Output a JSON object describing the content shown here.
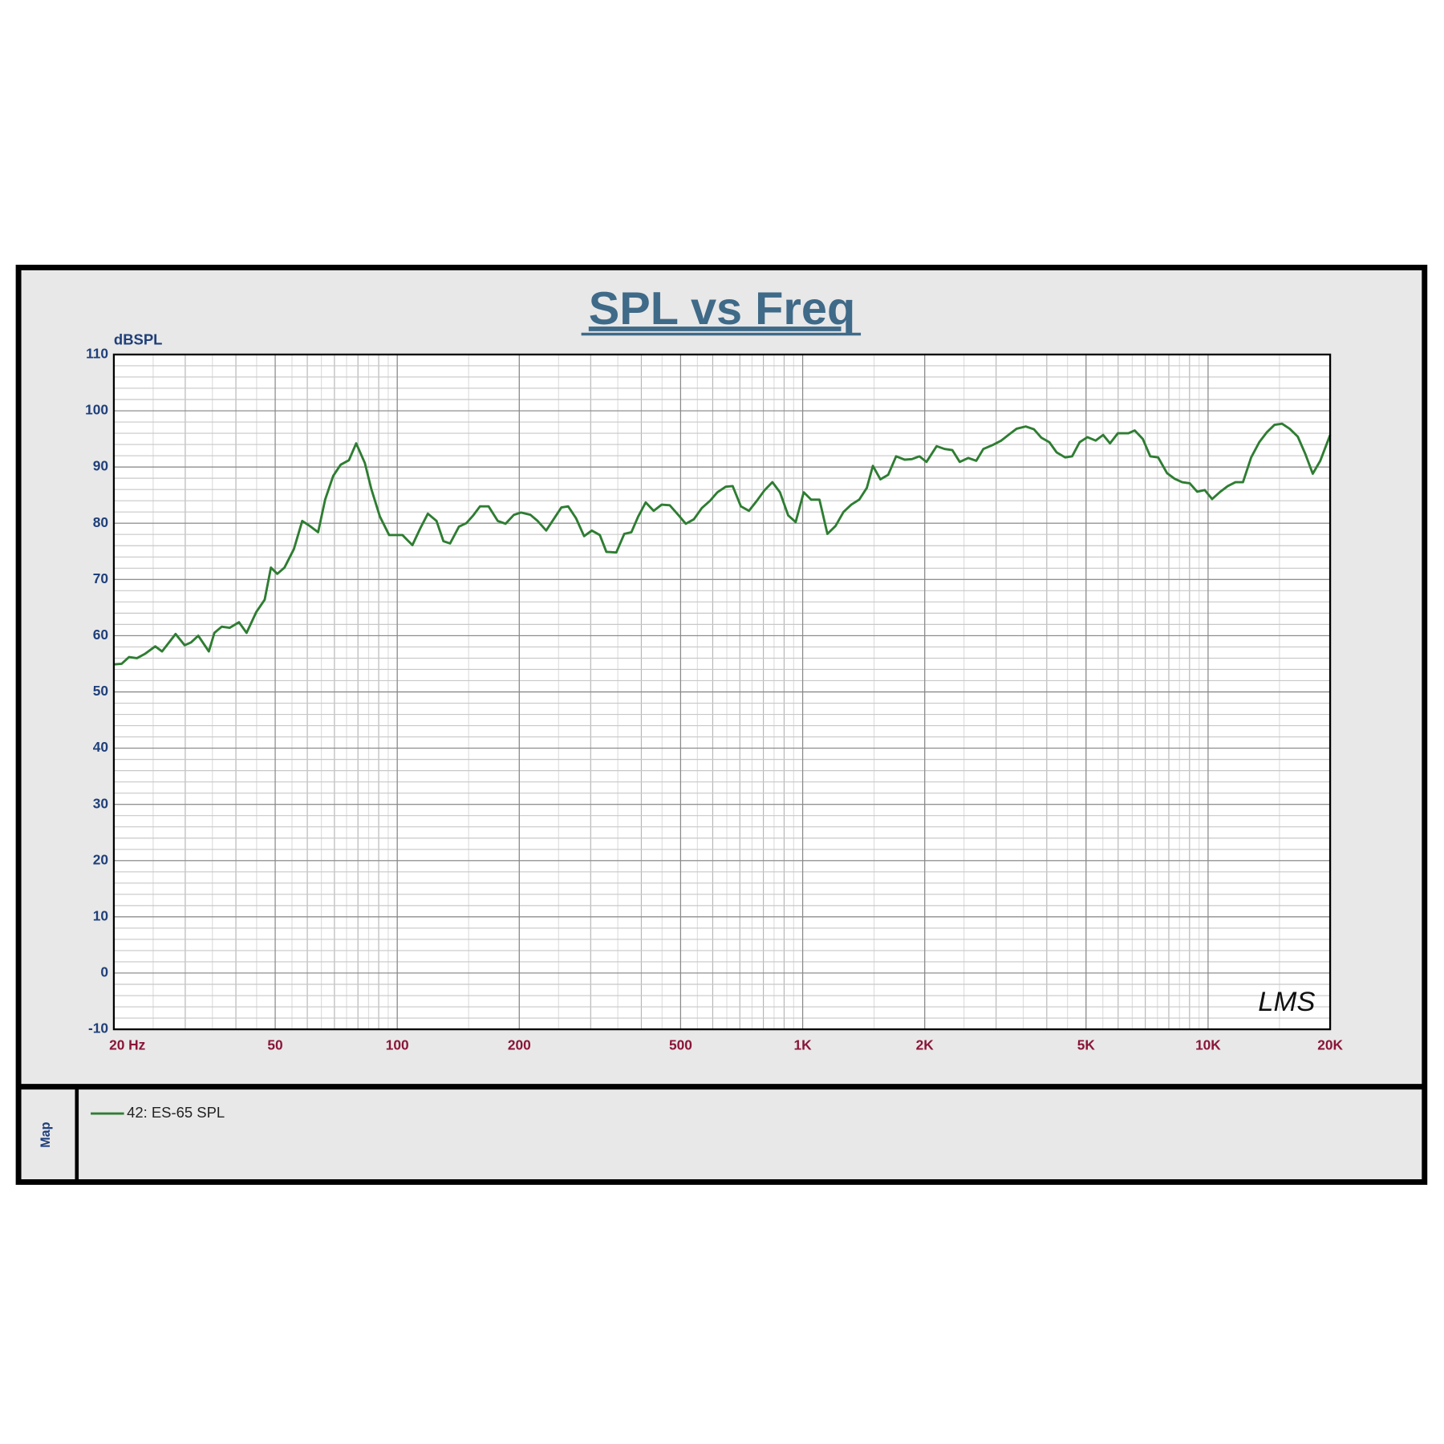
{
  "chart_data": {
    "type": "line",
    "title": "SPL vs Freq",
    "y_label": "dBSPL",
    "log_x": true,
    "grid": true,
    "minor_grid": true,
    "legend": "bottom",
    "map_label": "Map",
    "watermark": "LMS",
    "xlim": [
      20,
      20000
    ],
    "ylim": [
      -10,
      110
    ],
    "xticks": [
      {
        "value": 20,
        "label": "20  Hz"
      },
      50,
      100,
      200,
      500,
      {
        "value": 1000,
        "label": "1K"
      },
      {
        "value": 2000,
        "label": "2K"
      },
      {
        "value": 5000,
        "label": "5K"
      },
      {
        "value": 10000,
        "label": "10K"
      },
      {
        "value": 20000,
        "label": "20K"
      }
    ],
    "yticks": [
      110,
      100,
      90,
      80,
      70,
      60,
      50,
      40,
      30,
      20,
      10,
      0,
      -10
    ],
    "x": [
      20,
      20.9,
      21.8,
      22.8,
      23.9,
      25.3,
      26.3,
      28.4,
      29.9,
      31,
      32.3,
      34.3,
      35.4,
      36.9,
      38.6,
      40.7,
      42.5,
      44.9,
      47.1,
      48.8,
      50.6,
      52.7,
      55.6,
      58.3,
      60.9,
      63.8,
      66.4,
      69.5,
      72.5,
      76,
      79.2,
      83.2,
      86.3,
      90.6,
      95.5,
      103,
      109,
      114,
      119,
      125,
      130,
      135,
      142,
      148,
      154,
      160,
      168,
      177,
      185,
      194,
      202,
      213,
      222,
      233,
      243,
      254,
      264,
      276,
      289,
      302,
      316,
      328,
      347,
      363,
      378,
      393,
      410,
      429,
      449,
      470,
      493,
      515,
      539,
      564,
      591,
      616,
      646,
      672,
      704,
      737,
      771,
      804,
      842,
      879,
      921,
      961,
      1006,
      1049,
      1100,
      1151,
      1205,
      1261,
      1318,
      1379,
      1440,
      1490,
      1555,
      1625,
      1700,
      1785,
      1860,
      1940,
      2020,
      2140,
      2240,
      2340,
      2440,
      2560,
      2680,
      2790,
      2940,
      3090,
      3230,
      3370,
      3550,
      3720,
      3880,
      4060,
      4230,
      4440,
      4620,
      4820,
      5040,
      5280,
      5510,
      5730,
      5990,
      6360,
      6590,
      6900,
      7200,
      7530,
      7920,
      8270,
      8630,
      9010,
      9400,
      9810,
      10230,
      10720,
      11180,
      11680,
      12190,
      12770,
      13370,
      13970,
      14580,
      15220,
      15890,
      16640,
      17350,
      18120,
      18910,
      20000
    ],
    "series": [
      {
        "name": "42: ES-65  SPL",
        "color": "#2e7d32",
        "values": [
          54.9,
          55.0,
          56.2,
          56,
          56.8,
          58.1,
          57.2,
          60.3,
          58.3,
          58.8,
          60,
          57.2,
          60.5,
          61.6,
          61.4,
          62.4,
          60.5,
          64.2,
          66.4,
          72.1,
          71,
          72.1,
          75.4,
          80.4,
          79.5,
          78.4,
          84.2,
          88.4,
          90.4,
          91.2,
          94.2,
          90.7,
          86.1,
          81.2,
          77.9,
          77.9,
          76.1,
          79.1,
          81.7,
          80.4,
          76.8,
          76.4,
          79.4,
          80,
          81.4,
          83,
          83,
          80.4,
          79.9,
          81.5,
          81.9,
          81.5,
          80.4,
          78.7,
          80.7,
          82.8,
          83,
          80.9,
          77.7,
          78.7,
          77.9,
          74.9,
          74.8,
          78.1,
          78.4,
          81.2,
          83.7,
          82.2,
          83.3,
          83.2,
          81.5,
          79.9,
          80.7,
          82.7,
          84,
          85.5,
          86.5,
          86.6,
          83,
          82.2,
          84,
          85.8,
          87.3,
          85.5,
          81.4,
          80.2,
          85.5,
          84.2,
          84.2,
          78.1,
          79.5,
          82,
          83.3,
          84.2,
          86.3,
          90.2,
          87.8,
          88.6,
          91.9,
          91.3,
          91.4,
          91.9,
          90.9,
          93.7,
          93.2,
          93,
          90.9,
          91.6,
          91.1,
          93.2,
          93.9,
          94.7,
          95.8,
          96.8,
          97.2,
          96.7,
          95.2,
          94.4,
          92.6,
          91.7,
          91.9,
          94.4,
          95.3,
          94.7,
          95.7,
          94.2,
          96,
          96,
          96.5,
          95,
          91.9,
          91.7,
          88.9,
          87.9,
          87.3,
          87.1,
          85.6,
          85.9,
          84.3,
          85.6,
          86.6,
          87.3,
          87.3,
          91.7,
          94.4,
          96.2,
          97.5,
          97.7,
          96.8,
          95.4,
          92.4,
          88.8,
          91.1,
          95.7
        ]
      }
    ]
  }
}
